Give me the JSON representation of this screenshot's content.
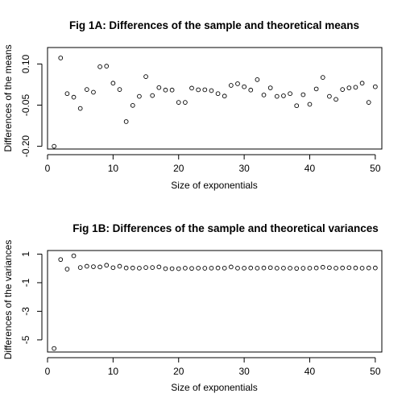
{
  "chart_data": [
    {
      "type": "scatter",
      "title": "Fig 1A: Differences of the sample and theoretical means",
      "xlabel": "Size of exponentials",
      "ylabel": "Differences of the means",
      "xlim": [
        0,
        51
      ],
      "ylim": [
        -0.21,
        0.16
      ],
      "xticks": [
        0,
        10,
        20,
        30,
        40,
        50
      ],
      "yticks": [
        -0.2,
        -0.05,
        0.1
      ],
      "ytick_labels": [
        "-0.20",
        "-0.05",
        "0.10"
      ],
      "grid": false,
      "x": [
        1,
        2,
        3,
        4,
        5,
        6,
        7,
        8,
        9,
        10,
        11,
        12,
        13,
        14,
        15,
        16,
        17,
        18,
        19,
        20,
        21,
        22,
        23,
        24,
        25,
        26,
        27,
        28,
        29,
        30,
        31,
        32,
        33,
        34,
        35,
        36,
        37,
        38,
        39,
        40,
        41,
        42,
        43,
        44,
        45,
        46,
        47,
        48,
        49,
        50
      ],
      "y": [
        -0.2,
        0.122,
        -0.008,
        -0.021,
        -0.062,
        0.007,
        -0.003,
        0.09,
        0.092,
        0.03,
        0.007,
        -0.11,
        -0.051,
        -0.018,
        0.054,
        -0.015,
        0.014,
        0.005,
        0.005,
        -0.04,
        -0.04,
        0.012,
        0.006,
        0.006,
        0.003,
        -0.008,
        -0.017,
        0.022,
        0.028,
        0.017,
        0.005,
        0.043,
        -0.013,
        0.013,
        -0.018,
        -0.016,
        -0.008,
        -0.052,
        -0.012,
        -0.047,
        0.009,
        0.051,
        -0.018,
        -0.029,
        0.007,
        0.013,
        0.015,
        0.03,
        -0.04,
        0.017
      ]
    },
    {
      "type": "scatter",
      "title": "Fig 1B: Differences of the sample and theoretical variances",
      "xlabel": "Size of exponentials",
      "ylabel": "Differences of the variances",
      "xlim": [
        0,
        51
      ],
      "ylim": [
        -5.85,
        1.25
      ],
      "xticks": [
        0,
        10,
        20,
        30,
        40,
        50
      ],
      "yticks": [
        -5,
        -3,
        -1,
        1
      ],
      "ytick_labels": [
        "-5",
        "-3",
        "-1",
        "1"
      ],
      "grid": false,
      "x": [
        1,
        2,
        3,
        4,
        5,
        6,
        7,
        8,
        9,
        10,
        11,
        12,
        13,
        14,
        15,
        16,
        17,
        18,
        19,
        20,
        21,
        22,
        23,
        24,
        25,
        26,
        27,
        28,
        29,
        30,
        31,
        32,
        33,
        34,
        35,
        36,
        37,
        38,
        39,
        40,
        41,
        42,
        43,
        44,
        45,
        46,
        47,
        48,
        49,
        50
      ],
      "y": [
        -5.6,
        0.62,
        -0.05,
        0.88,
        0.06,
        0.15,
        0.12,
        0.1,
        0.22,
        0.05,
        0.15,
        0.03,
        0.03,
        0.02,
        0.06,
        0.06,
        0.1,
        -0.02,
        -0.02,
        -0.02,
        0.02,
        0.0,
        0.02,
        0.01,
        0.02,
        0.03,
        0.02,
        0.1,
        0.02,
        0.02,
        0.03,
        0.02,
        0.03,
        0.05,
        0.02,
        0.02,
        0.02,
        0.0,
        0.01,
        0.02,
        0.03,
        0.08,
        0.05,
        0.02,
        0.03,
        0.05,
        0.03,
        0.02,
        0.03,
        0.03
      ]
    }
  ]
}
